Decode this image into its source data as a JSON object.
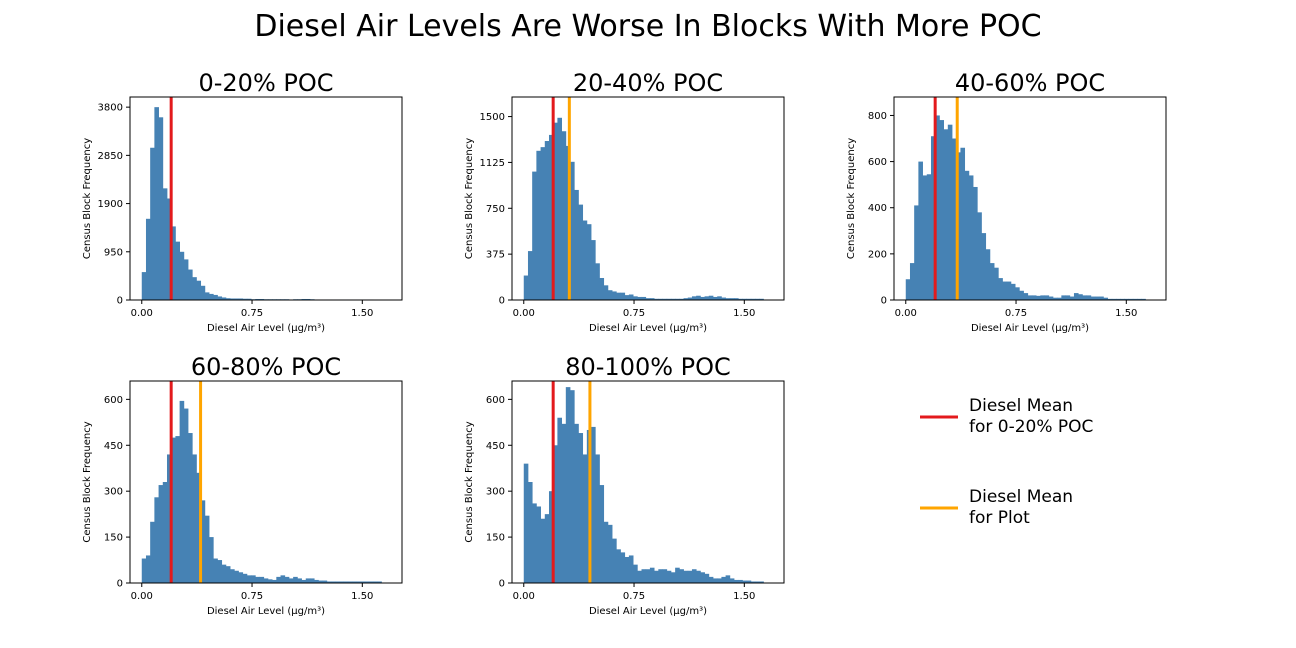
{
  "figure_title": "Diesel Air Levels Are Worse In Blocks With More POC",
  "legend": {
    "items": [
      {
        "line1": "Diesel Mean",
        "line2": "for 0-20% POC",
        "color": "#e31a1c"
      },
      {
        "line1": "Diesel Mean",
        "line2": "for Plot",
        "color": "#ffa500"
      }
    ]
  },
  "colors": {
    "bar": "#4682b4",
    "mean_base": "#e31a1c",
    "mean_plot": "#ffa500"
  },
  "chart_data": [
    {
      "type": "bar",
      "title": "0-20% POC",
      "xlabel": "Diesel Air Level (μg/m³)",
      "ylabel": "Census Block Frequency",
      "xlim": [
        -0.08,
        1.77
      ],
      "ylim": [
        0,
        4000
      ],
      "xticks": [
        "0.00",
        "0.75",
        "1.50"
      ],
      "yticks": [
        "0",
        "950",
        "1900",
        "2850",
        "3800"
      ],
      "bin_start": 0.0,
      "bin_width": 0.0286,
      "values": [
        550,
        1600,
        3000,
        3800,
        3600,
        2200,
        2000,
        1450,
        1150,
        950,
        800,
        600,
        450,
        380,
        280,
        150,
        120,
        100,
        70,
        50,
        35,
        30,
        30,
        30,
        25,
        25,
        15,
        20,
        20,
        15,
        15,
        15,
        15,
        15,
        15,
        10,
        15,
        15,
        20,
        20,
        15,
        10,
        10,
        10,
        10,
        10,
        10,
        10,
        10,
        10,
        10,
        10,
        10,
        10,
        10,
        5,
        5
      ],
      "mean_base": 0.2,
      "mean_plot": null
    },
    {
      "type": "bar",
      "title": "20-40% POC",
      "xlabel": "Diesel Air Level (μg/m³)",
      "ylabel": "Census Block Frequency",
      "xlim": [
        -0.08,
        1.77
      ],
      "ylim": [
        0,
        1660
      ],
      "xticks": [
        "0.00",
        "0.75",
        "1.50"
      ],
      "yticks": [
        "0",
        "375",
        "750",
        "1125",
        "1500"
      ],
      "bin_start": 0.0,
      "bin_width": 0.0286,
      "values": [
        200,
        400,
        1050,
        1220,
        1250,
        1300,
        1350,
        1450,
        1490,
        1380,
        1260,
        1130,
        900,
        780,
        650,
        620,
        490,
        300,
        180,
        120,
        80,
        70,
        60,
        60,
        40,
        45,
        30,
        25,
        25,
        15,
        15,
        10,
        10,
        10,
        10,
        10,
        10,
        10,
        15,
        20,
        30,
        35,
        25,
        30,
        35,
        25,
        30,
        20,
        15,
        15,
        15,
        10,
        10,
        10,
        10,
        10,
        10
      ],
      "mean_base": 0.2,
      "mean_plot": 0.31
    },
    {
      "type": "bar",
      "title": "40-60% POC",
      "xlabel": "Diesel Air Level (μg/m³)",
      "ylabel": "Census Block Frequency",
      "xlim": [
        -0.08,
        1.77
      ],
      "ylim": [
        0,
        880
      ],
      "xticks": [
        "0.00",
        "0.75",
        "1.50"
      ],
      "yticks": [
        "0",
        "200",
        "400",
        "600",
        "800"
      ],
      "bin_start": 0.0,
      "bin_width": 0.0286,
      "values": [
        90,
        160,
        410,
        600,
        540,
        545,
        710,
        800,
        780,
        740,
        760,
        700,
        640,
        660,
        560,
        540,
        490,
        380,
        290,
        220,
        160,
        140,
        95,
        80,
        80,
        70,
        55,
        40,
        30,
        20,
        20,
        18,
        20,
        20,
        15,
        10,
        10,
        20,
        20,
        15,
        30,
        25,
        20,
        20,
        15,
        15,
        15,
        10,
        5,
        5,
        5,
        5,
        5,
        5,
        5,
        5,
        5
      ],
      "mean_base": 0.2,
      "mean_plot": 0.35
    },
    {
      "type": "bar",
      "title": "60-80% POC",
      "xlabel": "Diesel Air Level (μg/m³)",
      "ylabel": "Census Block Frequency",
      "xlim": [
        -0.08,
        1.77
      ],
      "ylim": [
        0,
        660
      ],
      "xticks": [
        "0.00",
        "0.75",
        "1.50"
      ],
      "yticks": [
        "0",
        "150",
        "300",
        "450",
        "600"
      ],
      "bin_start": 0.0,
      "bin_width": 0.0286,
      "values": [
        80,
        90,
        200,
        280,
        320,
        330,
        420,
        475,
        480,
        595,
        570,
        490,
        420,
        360,
        270,
        220,
        150,
        80,
        75,
        60,
        55,
        45,
        40,
        35,
        30,
        25,
        25,
        20,
        20,
        15,
        12,
        10,
        20,
        25,
        20,
        15,
        20,
        15,
        10,
        15,
        15,
        10,
        8,
        8,
        5,
        5,
        5,
        5,
        5,
        5,
        5,
        5,
        5,
        5,
        5,
        5,
        5
      ],
      "mean_base": 0.2,
      "mean_plot": 0.4
    },
    {
      "type": "bar",
      "title": "80-100% POC",
      "xlabel": "Diesel Air Level (μg/m³)",
      "ylabel": "Census Block Frequency",
      "xlim": [
        -0.08,
        1.77
      ],
      "ylim": [
        0,
        660
      ],
      "xticks": [
        "0.00",
        "0.75",
        "1.50"
      ],
      "yticks": [
        "0",
        "150",
        "300",
        "450",
        "600"
      ],
      "bin_start": 0.0,
      "bin_width": 0.0286,
      "values": [
        390,
        330,
        260,
        250,
        210,
        225,
        300,
        450,
        540,
        520,
        640,
        630,
        520,
        490,
        420,
        500,
        510,
        420,
        320,
        200,
        190,
        145,
        110,
        100,
        85,
        90,
        60,
        40,
        45,
        45,
        50,
        40,
        45,
        45,
        40,
        35,
        50,
        45,
        40,
        40,
        45,
        40,
        35,
        30,
        20,
        15,
        15,
        20,
        25,
        15,
        10,
        10,
        8,
        8,
        5,
        5,
        5
      ],
      "mean_base": 0.2,
      "mean_plot": 0.45
    }
  ]
}
